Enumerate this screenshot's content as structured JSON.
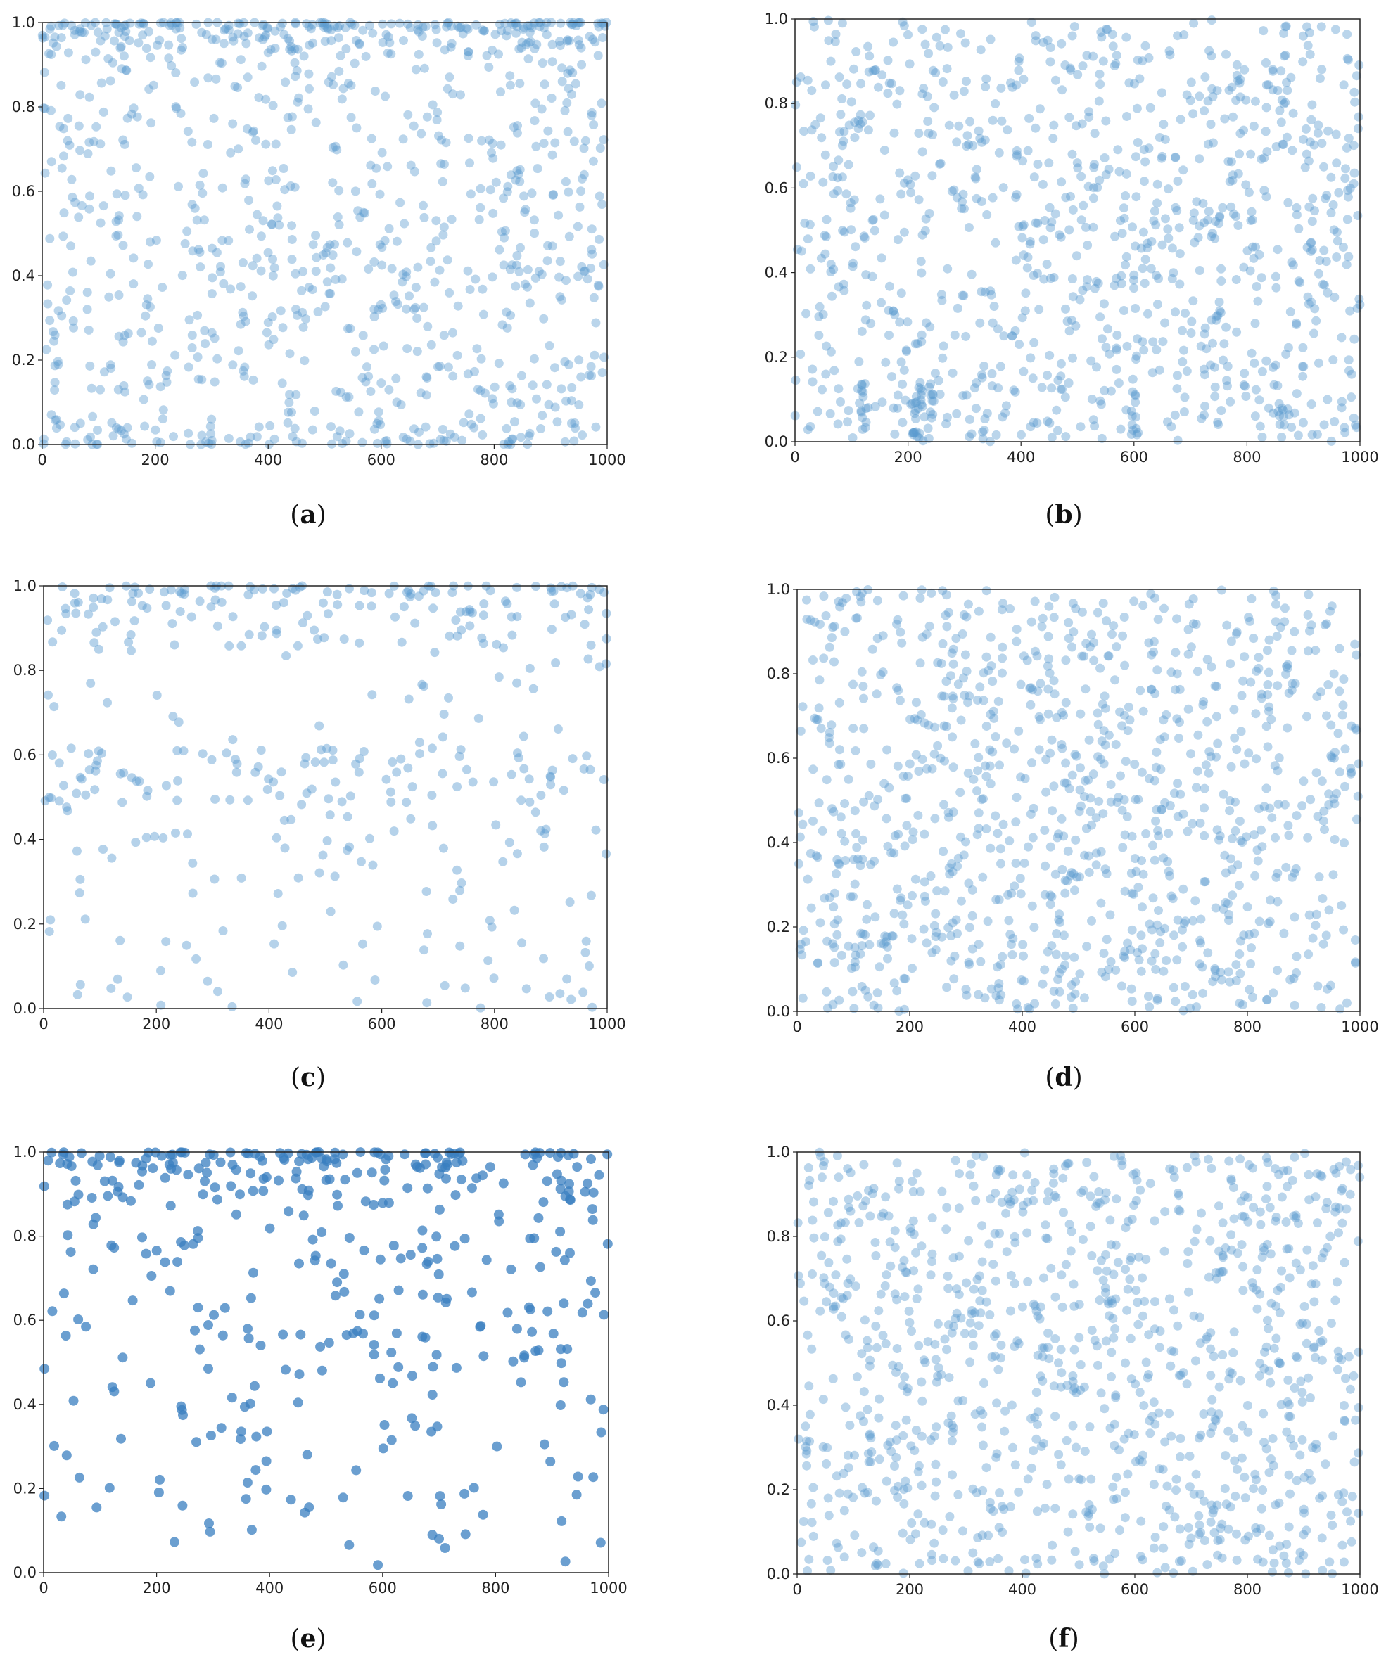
{
  "chart_data": [
    {
      "id": "a",
      "type": "scatter",
      "caption": {
        "open": "(",
        "letter": "a",
        "close": ")"
      },
      "xlim": [
        0,
        1000
      ],
      "ylim": [
        0,
        1
      ],
      "x_ticks": [
        "0",
        "200",
        "400",
        "600",
        "800",
        "1000"
      ],
      "y_ticks": [
        "0.0",
        "0.2",
        "0.4",
        "0.6",
        "0.8",
        "1.0"
      ],
      "n_points": 1000,
      "marker_color": "#5b9bd0",
      "marker_opacity": 0.42,
      "distribution": "uniform with strong cluster at y≈1.0 and moderate cluster near y≈0.0"
    },
    {
      "id": "b",
      "type": "scatter",
      "caption": {
        "open": "(",
        "letter": "b",
        "close": ")"
      },
      "xlim": [
        0,
        1000
      ],
      "ylim": [
        0,
        1
      ],
      "x_ticks": [
        "0",
        "200",
        "400",
        "600",
        "800",
        "1000"
      ],
      "y_ticks": [
        "0.0",
        "0.2",
        "0.4",
        "0.6",
        "0.8",
        "1.0"
      ],
      "n_points": 1000,
      "marker_color": "#5b9bd0",
      "marker_opacity": 0.42,
      "distribution": "uniform with vertical streaks near y=0 at x≈120, 210, 240, 600, 860"
    },
    {
      "id": "c",
      "type": "scatter",
      "caption": {
        "open": "(",
        "letter": "c",
        "close": ")"
      },
      "xlim": [
        0,
        1000
      ],
      "ylim": [
        0,
        1
      ],
      "x_ticks": [
        "0",
        "200",
        "400",
        "600",
        "800",
        "1000"
      ],
      "y_ticks": [
        "0.0",
        "0.2",
        "0.4",
        "0.6",
        "0.8",
        "1.0"
      ],
      "n_points": 400,
      "marker_color": "#5b9bd0",
      "marker_opacity": 0.45,
      "distribution": "sparse, cluster near y≈1.0 and band around y≈0.55"
    },
    {
      "id": "d",
      "type": "scatter",
      "caption": {
        "open": "(",
        "letter": "d",
        "close": ")"
      },
      "xlim": [
        0,
        1000
      ],
      "ylim": [
        0,
        1
      ],
      "x_ticks": [
        "0",
        "200",
        "400",
        "600",
        "800",
        "1000"
      ],
      "y_ticks": [
        "0.0",
        "0.2",
        "0.4",
        "0.6",
        "0.8",
        "1.0"
      ],
      "n_points": 1000,
      "marker_color": "#5b9bd0",
      "marker_opacity": 0.42,
      "distribution": "approximately uniform"
    },
    {
      "id": "e",
      "type": "scatter",
      "caption": {
        "open": "(",
        "letter": "e",
        "close": ")"
      },
      "xlim": [
        0,
        1000
      ],
      "ylim": [
        0,
        1
      ],
      "x_ticks": [
        "0",
        "200",
        "400",
        "600",
        "800",
        "1000"
      ],
      "y_ticks": [
        "0.0",
        "0.2",
        "0.4",
        "0.6",
        "0.8",
        "1.0"
      ],
      "n_points": 400,
      "marker_color": "#3a7fc0",
      "marker_opacity": 0.75,
      "distribution": "dense band at y≈1.0, decreasing density toward y=0"
    },
    {
      "id": "f",
      "type": "scatter",
      "caption": {
        "open": "(",
        "letter": "f",
        "close": ")"
      },
      "xlim": [
        0,
        1000
      ],
      "ylim": [
        0,
        1
      ],
      "x_ticks": [
        "0",
        "200",
        "400",
        "600",
        "800",
        "1000"
      ],
      "y_ticks": [
        "0.0",
        "0.2",
        "0.4",
        "0.6",
        "0.8",
        "1.0"
      ],
      "n_points": 1000,
      "marker_color": "#5b9bd0",
      "marker_opacity": 0.42,
      "distribution": "approximately uniform"
    }
  ]
}
